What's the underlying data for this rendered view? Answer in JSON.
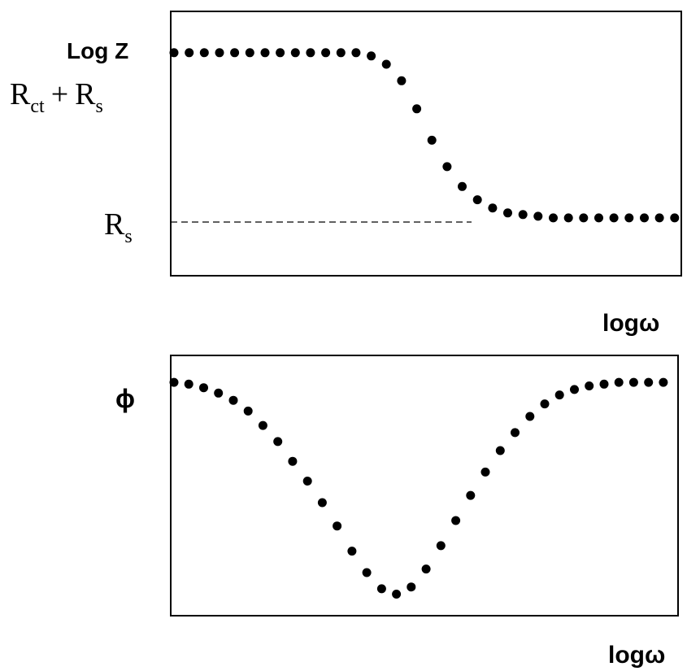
{
  "chart_data": [
    {
      "type": "scatter",
      "ylabel": "Log Z",
      "xlabel": "logω",
      "y_tick_labels": [
        {
          "label": "Rct + Rs",
          "main1": "R",
          "sub1": "ct",
          "plus": "+",
          "main2": "R",
          "sub2": "s",
          "value": 1.0
        },
        {
          "label": "Rs",
          "main1": "R",
          "sub1": "s",
          "value": 0.0
        }
      ],
      "reference_lines": [
        {
          "label": "Rs",
          "y": 0.0,
          "style": "dashed",
          "x_range": [
            0,
            6
          ]
        }
      ],
      "xlim": [
        0,
        10
      ],
      "ylim": [
        -0.35,
        1.25
      ],
      "marker_color": "#000000",
      "series": [
        {
          "x": [
            0.0,
            0.3,
            0.6,
            0.9,
            1.2,
            1.5,
            1.8,
            2.1,
            2.4,
            2.7,
            3.0,
            3.3,
            3.6,
            3.9,
            4.2,
            4.5,
            4.8,
            5.1,
            5.4,
            5.7,
            6.0,
            6.3,
            6.6,
            6.9,
            7.2,
            7.5,
            7.8,
            8.1,
            8.4,
            8.7,
            9.0,
            9.3,
            9.6,
            9.9
          ],
          "y": [
            1.0,
            1.0,
            1.0,
            1.0,
            1.0,
            1.0,
            1.0,
            1.0,
            1.0,
            1.0,
            1.0,
            1.0,
            1.0,
            0.98,
            0.93,
            0.83,
            0.66,
            0.47,
            0.31,
            0.19,
            0.11,
            0.06,
            0.03,
            0.02,
            0.01,
            0.0,
            0.0,
            0.0,
            0.0,
            0.0,
            0.0,
            0.0,
            0.0,
            0.0
          ]
        }
      ]
    },
    {
      "type": "scatter",
      "ylabel": "ϕ",
      "xlabel": "logω",
      "xlim": [
        0,
        10
      ],
      "ylim": [
        -1.3,
        0.15
      ],
      "marker_color": "#000000",
      "series": [
        {
          "x": [
            0.0,
            0.3,
            0.6,
            0.9,
            1.2,
            1.5,
            1.8,
            2.1,
            2.4,
            2.7,
            3.0,
            3.3,
            3.6,
            3.9,
            4.2,
            4.5,
            4.8,
            5.1,
            5.4,
            5.7,
            6.0,
            6.3,
            6.6,
            6.9,
            7.2,
            7.5,
            7.8,
            8.1,
            8.4,
            8.7,
            9.0,
            9.3,
            9.6,
            9.9
          ],
          "y": [
            0.0,
            -0.01,
            -0.03,
            -0.06,
            -0.1,
            -0.16,
            -0.24,
            -0.33,
            -0.44,
            -0.55,
            -0.67,
            -0.8,
            -0.94,
            -1.06,
            -1.15,
            -1.18,
            -1.14,
            -1.04,
            -0.91,
            -0.77,
            -0.63,
            -0.5,
            -0.38,
            -0.28,
            -0.19,
            -0.12,
            -0.07,
            -0.04,
            -0.02,
            -0.01,
            0.0,
            0.0,
            0.0,
            0.0
          ]
        }
      ]
    }
  ]
}
